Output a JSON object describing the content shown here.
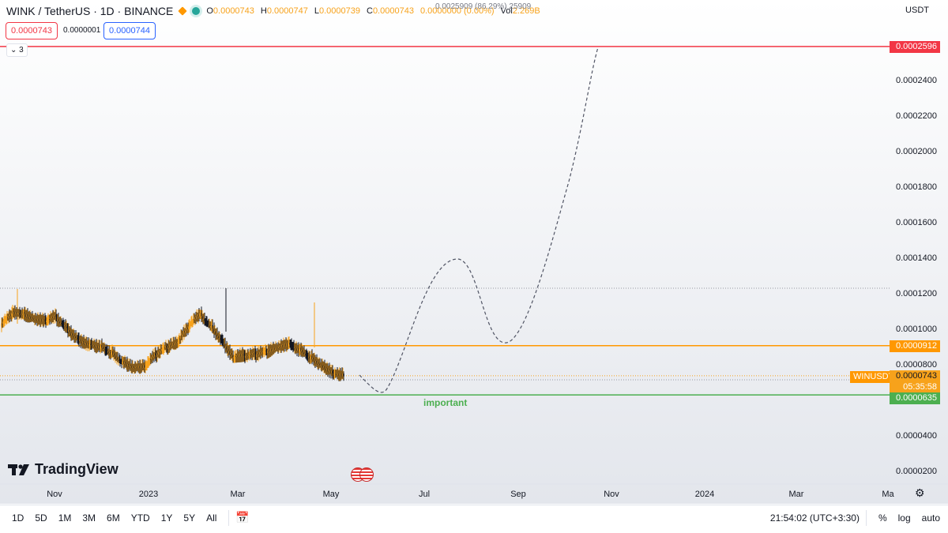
{
  "header": {
    "symbol": "WINK / TetherUS · 1D · BINANCE",
    "open_label": "O",
    "open": "0.0000743",
    "high_label": "H",
    "high": "0.0000747",
    "low_label": "L",
    "low": "0.0000739",
    "close_label": "C",
    "close": "0.0000743",
    "change": "0.0000000 (0.00%)",
    "vol_label": "Vol",
    "vol": "2.269B",
    "overlay_text": "0.0025909 (86.29%) 25909",
    "currency": "USDT"
  },
  "quote": {
    "bid": "0.0000743",
    "spread": "0.0000001",
    "ask": "0.0000744"
  },
  "indicators_toggle": "3",
  "price_axis": [
    "0.0002400",
    "0.0002200",
    "0.0002000",
    "0.0001800",
    "0.0001600",
    "0.0001400",
    "0.0001200",
    "0.0001000",
    "0.0000800",
    "0.0000400",
    "0.0000200"
  ],
  "price_tags": {
    "top_line": "0.0002596",
    "resistance": "0.0000912",
    "symbol_tag": "WINUSDT",
    "last_price": "0.0000743",
    "countdown": "05:35:58",
    "support": "0.0000635"
  },
  "annotation": "important",
  "time_axis": [
    "Nov",
    "2023",
    "Mar",
    "May",
    "Jul",
    "Sep",
    "Nov",
    "2024",
    "Mar",
    "Ma"
  ],
  "branding": "TradingView",
  "colors": {
    "accent_orange": "#f7a21b",
    "support_green": "#4caf50",
    "top_red": "#f23645",
    "resistance_orange": "#ff9800"
  },
  "toolbar": {
    "ranges": [
      "1D",
      "5D",
      "1M",
      "3M",
      "6M",
      "YTD",
      "1Y",
      "5Y",
      "All"
    ],
    "clock": "21:54:02 (UTC+3:30)",
    "percent": "%",
    "log": "log",
    "auto": "auto"
  },
  "chart_data": {
    "type": "candlestick",
    "title": "WINK / TetherUS · 1D · BINANCE",
    "ylim": [
      1.5e-05,
      0.000265
    ],
    "horizontal_lines": [
      {
        "label": "0.0002596",
        "value": 0.0002596,
        "color": "#f23645"
      },
      {
        "label": "0.0000912",
        "value": 9.12e-05,
        "color": "#ff9800"
      },
      {
        "label": "0.0000635",
        "value": 6.35e-05,
        "color": "#4caf50"
      }
    ],
    "close_path": [
      0.000102,
      0.000112,
      0.000108,
      0.000104,
      0.000105,
      0.00011,
      9.9e-05,
      9.2e-05,
      9e-05,
      8.9e-05,
      8.4e-05,
      7.8e-05,
      7.7e-05,
      8e-05,
      9.1e-05,
      9.4e-05,
      9.5e-05,
      0.000106,
      0.000112,
      9.7e-05,
      8.9e-05,
      8e-05,
      8.7e-05,
      8.8e-05,
      9e-05,
      9.1e-05,
      9.3e-05,
      8.6e-05,
      8.1e-05,
      7.7e-05,
      7.4e-05,
      7.43e-05
    ],
    "projection": [
      {
        "date": "2023-06-10",
        "value": 6.2e-05
      },
      {
        "date": "2023-07-25",
        "value": 0.00014
      },
      {
        "date": "2023-08-25",
        "value": 9.4e-05
      },
      {
        "date": "2023-10-20",
        "value": 0.0002596
      }
    ]
  }
}
